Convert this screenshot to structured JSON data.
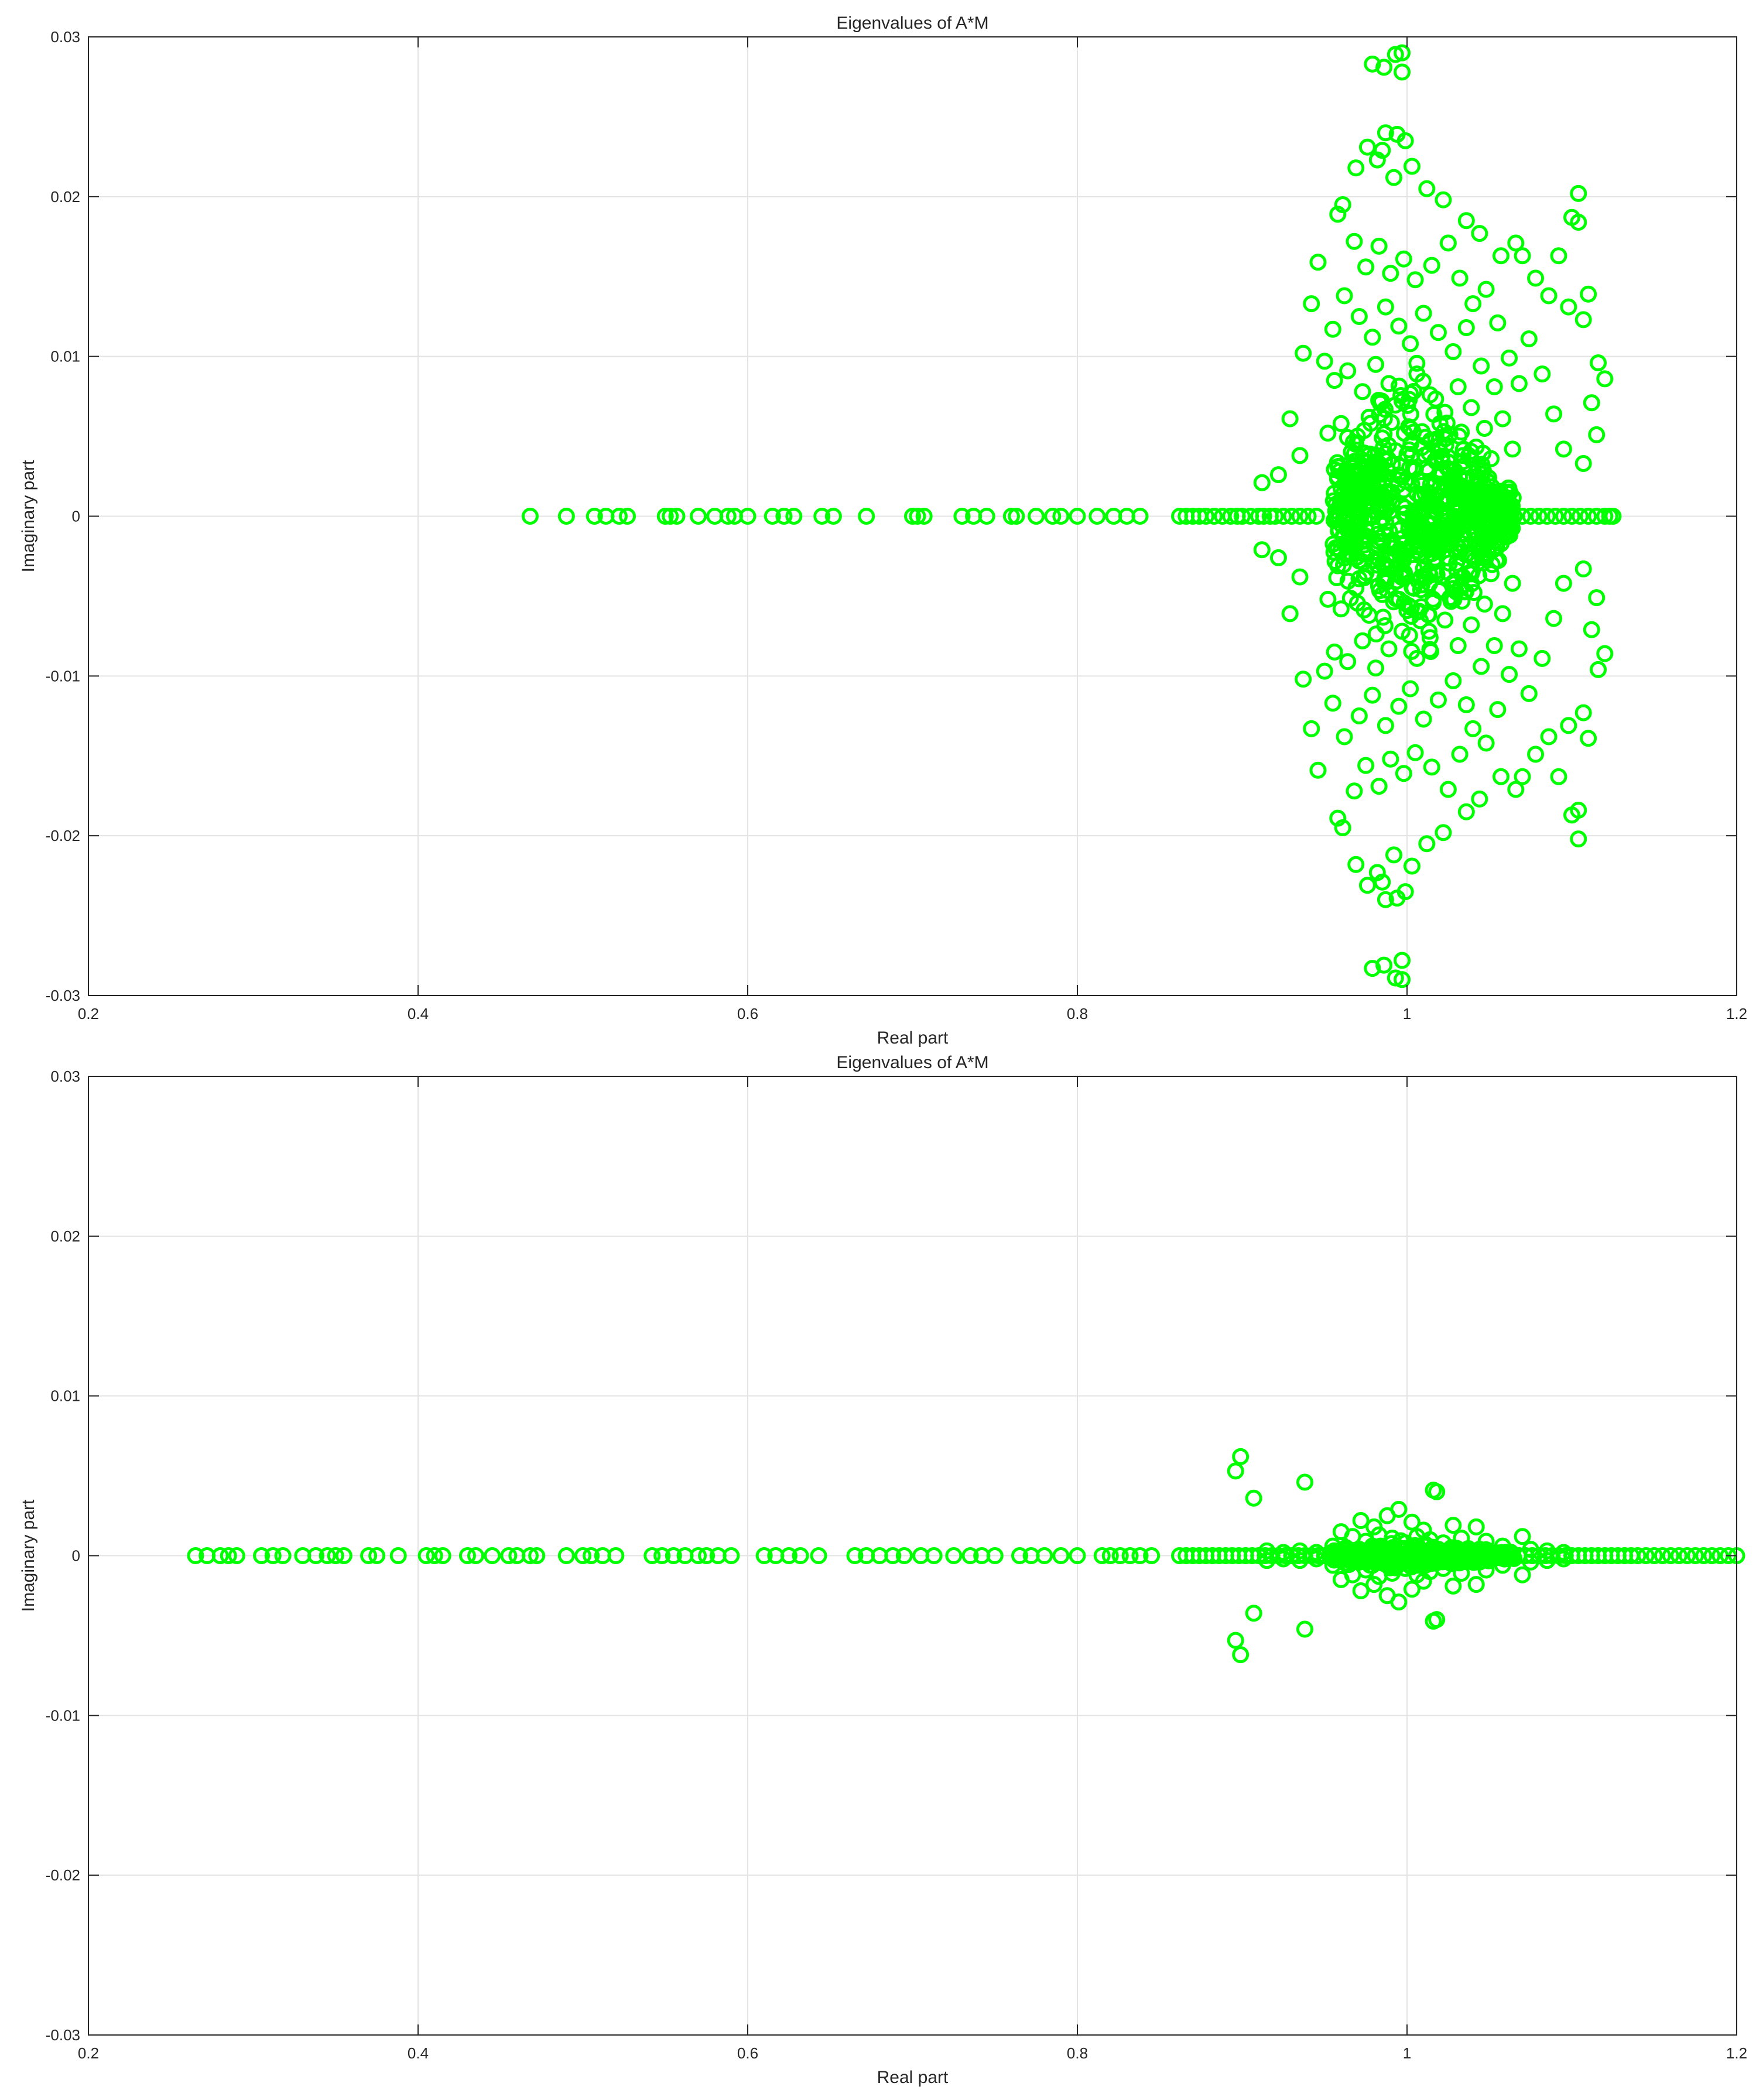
{
  "marker_color": "#00ff00",
  "chart_data": [
    {
      "type": "scatter",
      "title": "Eigenvalues of A*M",
      "xlabel": "Real part",
      "ylabel": "Imaginary part",
      "xlim": [
        0.2,
        1.2
      ],
      "ylim": [
        -0.03,
        0.03
      ],
      "xticks": [
        0.2,
        0.4,
        0.6,
        0.8,
        1.0,
        1.2
      ],
      "xtick_labels": [
        "0.2",
        "0.4",
        "0.6",
        "0.8",
        "1",
        "1.2"
      ],
      "yticks": [
        -0.03,
        -0.02,
        -0.01,
        0,
        0.01,
        0.02,
        0.03
      ],
      "ytick_labels": [
        "-0.03",
        "-0.02",
        "-0.01",
        "0",
        "0.01",
        "0.02",
        "0.03"
      ],
      "grid": true,
      "marker": "open-circle",
      "real_axis_points": [
        0.468,
        0.49,
        0.507,
        0.514,
        0.522,
        0.527,
        0.55,
        0.553,
        0.557,
        0.57,
        0.58,
        0.588,
        0.592,
        0.6,
        0.615,
        0.622,
        0.628,
        0.645,
        0.652,
        0.672,
        0.7,
        0.703,
        0.707,
        0.73,
        0.737,
        0.745,
        0.76,
        0.763,
        0.775,
        0.785,
        0.79,
        0.8,
        0.812,
        0.822,
        0.83,
        0.838,
        0.862,
        0.866,
        0.87,
        0.874,
        0.878,
        0.883,
        0.888,
        0.893,
        0.897,
        0.9,
        0.905,
        0.91,
        0.913,
        0.917,
        0.92,
        0.925,
        0.93,
        0.935,
        0.94,
        0.945,
        1.06,
        1.065,
        1.07,
        1.075,
        1.08,
        1.085,
        1.09,
        1.095,
        1.1,
        1.105,
        1.11,
        1.115,
        1.12,
        1.123,
        1.125
      ],
      "conjugate_pairs": [
        [
          0.993,
          0.0289
        ],
        [
          0.997,
          0.029
        ],
        [
          0.997,
          0.0278
        ],
        [
          0.986,
          0.0281
        ],
        [
          0.979,
          0.0283
        ],
        [
          0.987,
          0.024
        ],
        [
          0.994,
          0.0239
        ],
        [
          0.999,
          0.0235
        ],
        [
          0.985,
          0.0229
        ],
        [
          0.976,
          0.0231
        ],
        [
          0.969,
          0.0218
        ],
        [
          0.982,
          0.0223
        ],
        [
          0.992,
          0.0212
        ],
        [
          1.003,
          0.0219
        ],
        [
          1.012,
          0.0205
        ],
        [
          0.961,
          0.0195
        ],
        [
          0.958,
          0.0189
        ],
        [
          1.022,
          0.0198
        ],
        [
          1.036,
          0.0185
        ],
        [
          1.044,
          0.0177
        ],
        [
          1.057,
          0.0163
        ],
        [
          1.066,
          0.0171
        ],
        [
          1.07,
          0.0163
        ],
        [
          1.078,
          0.0149
        ],
        [
          1.086,
          0.0138
        ],
        [
          1.104,
          0.0202
        ],
        [
          1.1,
          0.0187
        ],
        [
          1.104,
          0.0184
        ],
        [
          1.092,
          0.0163
        ],
        [
          1.11,
          0.0139
        ],
        [
          1.098,
          0.0131
        ],
        [
          1.107,
          0.0123
        ],
        [
          1.116,
          0.0096
        ],
        [
          1.12,
          0.0086
        ],
        [
          1.112,
          0.0071
        ],
        [
          1.115,
          0.0051
        ],
        [
          1.107,
          0.0033
        ],
        [
          0.946,
          0.0159
        ],
        [
          0.942,
          0.0133
        ],
        [
          0.937,
          0.0102
        ],
        [
          0.929,
          0.0061
        ],
        [
          0.935,
          0.0038
        ],
        [
          0.922,
          0.0026
        ],
        [
          0.912,
          0.0021
        ],
        [
          0.95,
          0.0097
        ],
        [
          0.955,
          0.0117
        ],
        [
          1.082,
          0.0089
        ],
        [
          1.089,
          0.0064
        ],
        [
          1.095,
          0.0042
        ],
        [
          1.074,
          0.0111
        ],
        [
          0.968,
          0.0172
        ],
        [
          0.975,
          0.0156
        ],
        [
          0.983,
          0.0169
        ],
        [
          0.99,
          0.0152
        ],
        [
          0.998,
          0.0161
        ],
        [
          1.005,
          0.0148
        ],
        [
          1.015,
          0.0157
        ],
        [
          1.025,
          0.0171
        ],
        [
          1.032,
          0.0149
        ],
        [
          1.04,
          0.0133
        ],
        [
          1.048,
          0.0142
        ],
        [
          1.055,
          0.0121
        ],
        [
          1.062,
          0.0099
        ],
        [
          1.068,
          0.0083
        ],
        [
          0.962,
          0.0138
        ],
        [
          0.971,
          0.0125
        ],
        [
          0.979,
          0.0112
        ],
        [
          0.987,
          0.0131
        ],
        [
          0.995,
          0.0119
        ],
        [
          1.002,
          0.0108
        ],
        [
          1.01,
          0.0127
        ],
        [
          1.019,
          0.0115
        ],
        [
          1.028,
          0.0103
        ],
        [
          1.036,
          0.0118
        ],
        [
          1.045,
          0.0094
        ],
        [
          1.053,
          0.0081
        ],
        [
          0.956,
          0.0085
        ],
        [
          0.964,
          0.0091
        ],
        [
          0.973,
          0.0078
        ],
        [
          0.981,
          0.0095
        ],
        [
          0.989,
          0.0083
        ],
        [
          0.997,
          0.0072
        ],
        [
          1.006,
          0.0089
        ],
        [
          1.014,
          0.0076
        ],
        [
          1.023,
          0.0065
        ],
        [
          1.031,
          0.0081
        ],
        [
          1.039,
          0.0068
        ],
        [
          1.047,
          0.0055
        ],
        [
          1.058,
          0.0061
        ],
        [
          0.952,
          0.0052
        ],
        [
          0.96,
          0.0058
        ],
        [
          0.969,
          0.0045
        ],
        [
          0.977,
          0.0062
        ],
        [
          0.985,
          0.0049
        ],
        [
          0.993,
          0.0041
        ],
        [
          1.001,
          0.0056
        ],
        [
          1.009,
          0.0043
        ],
        [
          1.017,
          0.0035
        ],
        [
          1.026,
          0.0051
        ],
        [
          1.034,
          0.0038
        ],
        [
          1.043,
          0.0029
        ],
        [
          1.051,
          0.0036
        ],
        [
          1.064,
          0.0042
        ],
        [
          0.958,
          0.0031
        ],
        [
          0.966,
          0.0024
        ],
        [
          0.974,
          0.0018
        ],
        [
          0.983,
          0.0027
        ],
        [
          0.991,
          0.0015
        ],
        [
          0.999,
          0.0022
        ],
        [
          1.008,
          0.0012
        ],
        [
          1.016,
          0.0019
        ],
        [
          1.024,
          0.0011
        ],
        [
          1.033,
          0.0017
        ],
        [
          1.041,
          0.0009
        ],
        [
          1.05,
          0.0014
        ]
      ]
    },
    {
      "type": "scatter",
      "title": "Eigenvalues of A*M",
      "xlabel": "Real part",
      "ylabel": "Imaginary part",
      "xlim": [
        0.2,
        1.2
      ],
      "ylim": [
        -0.03,
        0.03
      ],
      "xticks": [
        0.2,
        0.4,
        0.6,
        0.8,
        1.0,
        1.2
      ],
      "xtick_labels": [
        "0.2",
        "0.4",
        "0.6",
        "0.8",
        "1",
        "1.2"
      ],
      "yticks": [
        -0.03,
        -0.02,
        -0.01,
        0,
        0.01,
        0.02,
        0.03
      ],
      "ytick_labels": [
        "-0.03",
        "-0.02",
        "-0.01",
        "0",
        "0.01",
        "0.02",
        "0.03"
      ],
      "grid": true,
      "marker": "open-circle",
      "real_axis_points": [
        0.265,
        0.272,
        0.28,
        0.285,
        0.29,
        0.305,
        0.312,
        0.318,
        0.33,
        0.338,
        0.345,
        0.35,
        0.355,
        0.37,
        0.375,
        0.388,
        0.405,
        0.41,
        0.415,
        0.43,
        0.435,
        0.445,
        0.455,
        0.46,
        0.468,
        0.472,
        0.49,
        0.5,
        0.505,
        0.512,
        0.52,
        0.542,
        0.548,
        0.555,
        0.562,
        0.57,
        0.575,
        0.582,
        0.59,
        0.61,
        0.617,
        0.625,
        0.632,
        0.643,
        0.665,
        0.672,
        0.68,
        0.688,
        0.695,
        0.705,
        0.713,
        0.725,
        0.735,
        0.742,
        0.75,
        0.765,
        0.772,
        0.78,
        0.79,
        0.8,
        0.815,
        0.82,
        0.826,
        0.832,
        0.838,
        0.845,
        0.862,
        0.866,
        0.87,
        0.874,
        0.878,
        0.882,
        0.886,
        0.89,
        0.894,
        0.898,
        0.902,
        0.906,
        0.91,
        0.914,
        0.918,
        0.922,
        0.926,
        0.93,
        0.934,
        0.938,
        0.942,
        0.946,
        0.95,
        0.954,
        1.06,
        1.064,
        1.068,
        1.072,
        1.076,
        1.08,
        1.084,
        1.088,
        1.092,
        1.096,
        1.1,
        1.104,
        1.108,
        1.112,
        1.116,
        1.12,
        1.124,
        1.128,
        1.132,
        1.136,
        1.14,
        1.145,
        1.15,
        1.155,
        1.16,
        1.165,
        1.17,
        1.175,
        1.18,
        1.185,
        1.19,
        1.195,
        1.2
      ],
      "conjugate_pairs": [
        [
          0.899,
          0.0062
        ],
        [
          0.896,
          0.0053
        ],
        [
          0.907,
          0.0036
        ],
        [
          0.938,
          0.0046
        ],
        [
          0.995,
          0.0029
        ],
        [
          1.016,
          0.0041
        ],
        [
          1.018,
          0.004
        ],
        [
          0.972,
          0.0022
        ],
        [
          0.98,
          0.0018
        ],
        [
          0.988,
          0.0025
        ],
        [
          1.003,
          0.0021
        ],
        [
          1.01,
          0.0016
        ],
        [
          1.028,
          0.0019
        ],
        [
          1.042,
          0.0018
        ],
        [
          1.07,
          0.0012
        ],
        [
          0.96,
          0.0015
        ],
        [
          0.967,
          0.0012
        ],
        [
          0.975,
          0.0009
        ],
        [
          0.983,
          0.0013
        ],
        [
          0.991,
          0.0011
        ],
        [
          0.999,
          0.0008
        ],
        [
          1.006,
          0.0012
        ],
        [
          1.014,
          0.001
        ],
        [
          1.022,
          0.0008
        ],
        [
          1.033,
          0.0011
        ],
        [
          1.048,
          0.0009
        ],
        [
          1.058,
          0.0006
        ],
        [
          0.955,
          0.0006
        ],
        [
          0.963,
          0.0005
        ],
        [
          0.971,
          0.0004
        ],
        [
          0.979,
          0.0006
        ],
        [
          0.987,
          0.0004
        ],
        [
          0.995,
          0.0005
        ],
        [
          1.003,
          0.0004
        ],
        [
          1.011,
          0.0006
        ],
        [
          1.019,
          0.0004
        ],
        [
          1.027,
          0.0005
        ],
        [
          1.036,
          0.0003
        ],
        [
          1.044,
          0.0004
        ],
        [
          1.075,
          0.0004
        ],
        [
          1.085,
          0.0003
        ],
        [
          1.095,
          0.0002
        ],
        [
          0.915,
          0.0003
        ],
        [
          0.925,
          0.0002
        ],
        [
          0.935,
          0.0003
        ],
        [
          0.945,
          0.0002
        ]
      ]
    }
  ]
}
